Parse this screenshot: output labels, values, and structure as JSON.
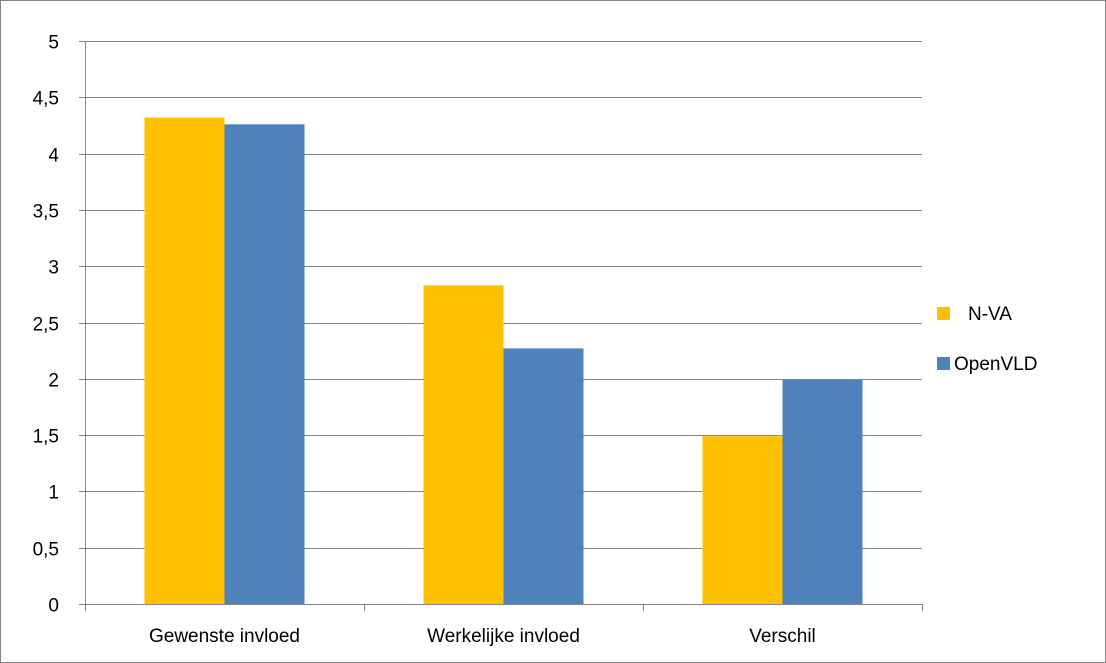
{
  "chart_data": {
    "type": "bar",
    "categories": [
      "Gewenste invloed",
      "Werkelijke invloed",
      "Verschil"
    ],
    "series": [
      {
        "name": "N-VA",
        "values": [
          4.32,
          2.83,
          1.49
        ],
        "color": "#FFC000"
      },
      {
        "name": "OpenVLD",
        "values": [
          4.26,
          2.27,
          1.99
        ],
        "color": "#4F81BD"
      }
    ],
    "ylim": [
      0,
      5
    ],
    "yticks": [
      "0",
      "0,5",
      "1",
      "1,5",
      "2",
      "2,5",
      "3",
      "3,5",
      "4",
      "4,5",
      "5"
    ],
    "grid": true,
    "legend": "right",
    "title": "",
    "xlabel": "",
    "ylabel": ""
  }
}
